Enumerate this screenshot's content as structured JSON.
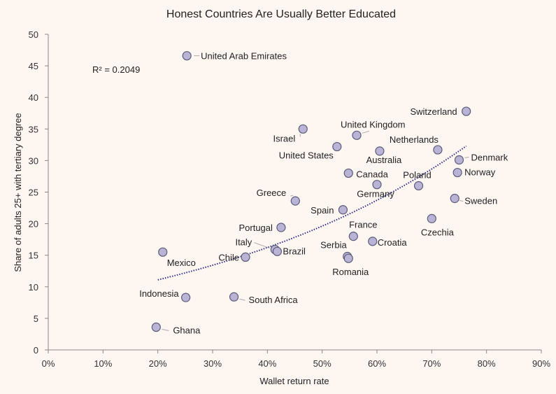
{
  "chart_data": {
    "type": "scatter",
    "title": "Honest Countries Are Usually Better Educated",
    "xlabel": "Wallet return rate",
    "ylabel": "Share of adults 25+ with tertiary degree",
    "xlim": [
      0,
      0.9
    ],
    "ylim": [
      0,
      50
    ],
    "x_ticks": [
      "0%",
      "10%",
      "20%",
      "30%",
      "40%",
      "50%",
      "60%",
      "70%",
      "80%",
      "90%"
    ],
    "y_ticks": [
      "0",
      "5",
      "10",
      "15",
      "20",
      "25",
      "30",
      "35",
      "40",
      "45",
      "50"
    ],
    "grid": false,
    "legend": "none",
    "annotation": "R² = 0.2049",
    "trendline": {
      "type": "exponential",
      "x_start": 0.2,
      "x_end": 0.763,
      "y_start": 11.1,
      "y_end": 32.3
    },
    "points": [
      {
        "name": "United Arab Emirates",
        "x": 0.253,
        "y": 46.6
      },
      {
        "name": "Switzerland",
        "x": 0.763,
        "y": 37.8
      },
      {
        "name": "Israel",
        "x": 0.465,
        "y": 35.0
      },
      {
        "name": "United Kingdom",
        "x": 0.563,
        "y": 34.0
      },
      {
        "name": "United States",
        "x": 0.527,
        "y": 32.2
      },
      {
        "name": "Netherlands",
        "x": 0.711,
        "y": 31.7
      },
      {
        "name": "Australia",
        "x": 0.605,
        "y": 31.5
      },
      {
        "name": "Denmark",
        "x": 0.75,
        "y": 30.1
      },
      {
        "name": "Canada",
        "x": 0.548,
        "y": 28.0
      },
      {
        "name": "Norway",
        "x": 0.747,
        "y": 28.1
      },
      {
        "name": "Poland",
        "x": 0.676,
        "y": 26.0
      },
      {
        "name": "Germany",
        "x": 0.6,
        "y": 26.2
      },
      {
        "name": "Greece",
        "x": 0.451,
        "y": 23.6
      },
      {
        "name": "Sweden",
        "x": 0.742,
        "y": 24.0
      },
      {
        "name": "Spain",
        "x": 0.538,
        "y": 22.2
      },
      {
        "name": "Czechia",
        "x": 0.7,
        "y": 20.8
      },
      {
        "name": "Portugal",
        "x": 0.425,
        "y": 19.4
      },
      {
        "name": "France",
        "x": 0.557,
        "y": 18.0
      },
      {
        "name": "Croatia",
        "x": 0.592,
        "y": 17.2
      },
      {
        "name": "Italy",
        "x": 0.414,
        "y": 15.9
      },
      {
        "name": "Brazil",
        "x": 0.418,
        "y": 15.6
      },
      {
        "name": "Mexico",
        "x": 0.209,
        "y": 15.5
      },
      {
        "name": "Serbia",
        "x": 0.546,
        "y": 14.8
      },
      {
        "name": "Chile",
        "x": 0.36,
        "y": 14.7
      },
      {
        "name": "Romania",
        "x": 0.548,
        "y": 14.5
      },
      {
        "name": "South Africa",
        "x": 0.339,
        "y": 8.4
      },
      {
        "name": "Indonesia",
        "x": 0.251,
        "y": 8.3
      },
      {
        "name": "Ghana",
        "x": 0.197,
        "y": 3.6
      }
    ]
  }
}
